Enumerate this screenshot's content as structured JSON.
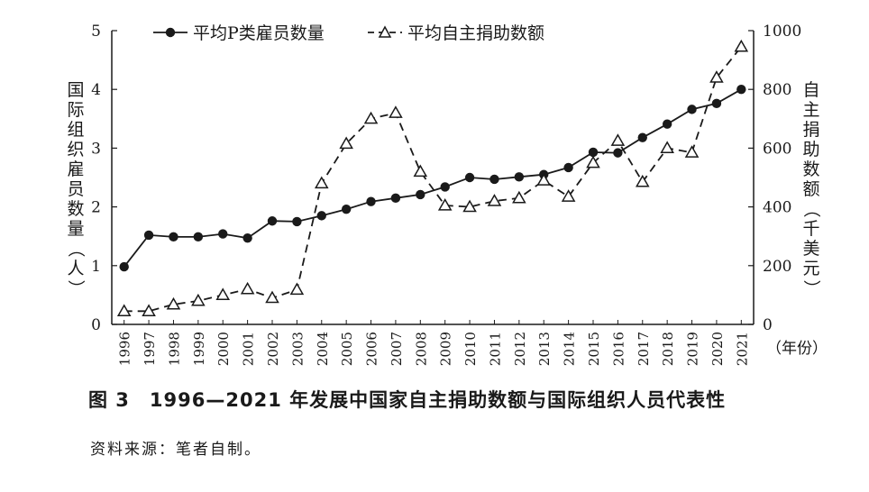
{
  "chart_data": {
    "type": "line",
    "x": [
      "1996",
      "1997",
      "1998",
      "1999",
      "2000",
      "2001",
      "2002",
      "2003",
      "2004",
      "2005",
      "2006",
      "2007",
      "2008",
      "2009",
      "2010",
      "2011",
      "2012",
      "2013",
      "2014",
      "2015",
      "2016",
      "2017",
      "2018",
      "2019",
      "2020",
      "2021"
    ],
    "x_unit": "（年份）",
    "ylabel_left": "国际组织雇员数量（人）",
    "ylabel_right": "自主捐助数额（千美元）",
    "ylim_left": [
      0,
      5
    ],
    "ylim_right": [
      0,
      1000
    ],
    "yticks_left": [
      "0",
      "1",
      "2",
      "3",
      "4",
      "5"
    ],
    "yticks_right": [
      "0",
      "200",
      "400",
      "600",
      "800",
      "1000"
    ],
    "legend_position": "top",
    "grid": false,
    "series": [
      {
        "name": "平均P类雇员数量",
        "axis": "left",
        "style": "solid-line-filled-circle",
        "color": "#1a1a1a",
        "values": [
          0.98,
          1.52,
          1.49,
          1.49,
          1.54,
          1.47,
          1.76,
          1.75,
          1.85,
          1.96,
          2.09,
          2.15,
          2.21,
          2.34,
          2.5,
          2.47,
          2.51,
          2.55,
          2.67,
          2.93,
          2.92,
          3.18,
          3.41,
          3.66,
          3.76,
          4.0
        ]
      },
      {
        "name": "平均自主捐助数额",
        "axis": "right",
        "style": "dashed-line-open-triangle",
        "color": "#1a1a1a",
        "values": [
          45,
          45,
          68,
          80,
          100,
          120,
          90,
          118,
          480,
          615,
          700,
          720,
          520,
          405,
          400,
          420,
          430,
          490,
          435,
          550,
          625,
          485,
          600,
          585,
          840,
          945
        ]
      }
    ]
  },
  "caption": "图 3　1996—2021 年发展中国家自主捐助数额与国际组织人员代表性",
  "source_note": "资料来源：笔者自制。"
}
